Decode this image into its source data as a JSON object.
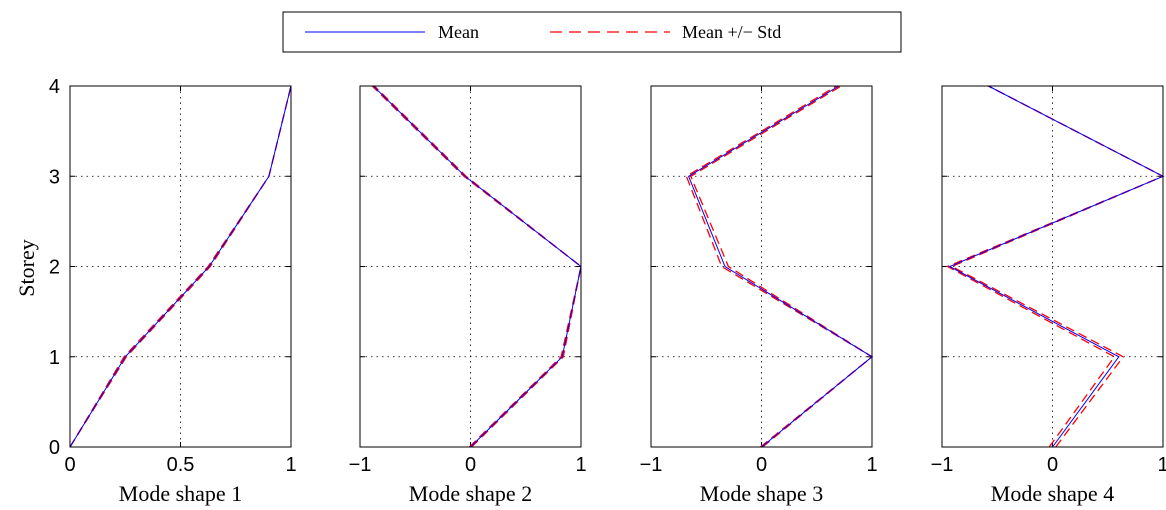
{
  "legend": {
    "entries": [
      {
        "label": "Mean",
        "color": "#0000ff",
        "style": "solid"
      },
      {
        "label": "Mean +/− Std",
        "color": "#ff0000",
        "style": "dashed"
      }
    ]
  },
  "ylabel": "Storey",
  "chart_data": [
    {
      "type": "line",
      "xlabel": "Mode shape 1",
      "xlim": [
        0,
        1
      ],
      "ylim": [
        0,
        4
      ],
      "xticks": [
        "0",
        "0.5",
        "1"
      ],
      "xtick_values": [
        0,
        0.5,
        1
      ],
      "yticks": [
        "0",
        "1",
        "2",
        "3",
        "4"
      ],
      "grid": true,
      "series": [
        {
          "name": "Mean",
          "y": [
            0,
            1,
            2,
            3,
            4
          ],
          "x": [
            0,
            0.25,
            0.63,
            0.9,
            1.0
          ]
        },
        {
          "name": "Mean +/− Std",
          "y": [
            0,
            1,
            2,
            3,
            4
          ],
          "x": [
            0,
            0.245,
            0.625,
            0.9,
            1.0
          ]
        },
        {
          "name": "Mean +/− Std",
          "y": [
            0,
            1,
            2,
            3,
            4
          ],
          "x": [
            0,
            0.255,
            0.635,
            0.9,
            1.0
          ]
        }
      ]
    },
    {
      "type": "line",
      "xlabel": "Mode shape 2",
      "xlim": [
        -1,
        1
      ],
      "ylim": [
        0,
        4
      ],
      "xticks": [
        "−1",
        "0",
        "1"
      ],
      "xtick_values": [
        -1,
        0,
        1
      ],
      "grid": true,
      "series": [
        {
          "name": "Mean",
          "y": [
            0,
            1,
            2,
            3,
            4
          ],
          "x": [
            0.0,
            0.83,
            1.0,
            -0.05,
            -0.88
          ]
        },
        {
          "name": "Mean +/− Std",
          "y": [
            0,
            1,
            2,
            3,
            4
          ],
          "x": [
            -0.01,
            0.82,
            1.0,
            -0.06,
            -0.89
          ]
        },
        {
          "name": "Mean +/− Std",
          "y": [
            0,
            1,
            2,
            3,
            4
          ],
          "x": [
            0.01,
            0.84,
            1.0,
            -0.04,
            -0.87
          ]
        }
      ]
    },
    {
      "type": "line",
      "xlabel": "Mode shape 3",
      "xlim": [
        -1,
        1
      ],
      "ylim": [
        0,
        4
      ],
      "xticks": [
        "−1",
        "0",
        "1"
      ],
      "xtick_values": [
        -1,
        0,
        1
      ],
      "grid": true,
      "series": [
        {
          "name": "Mean",
          "y": [
            0,
            1,
            2,
            3,
            4
          ],
          "x": [
            0.0,
            1.0,
            -0.33,
            -0.66,
            0.7
          ]
        },
        {
          "name": "Mean +/− Std",
          "y": [
            0,
            1,
            2,
            3,
            4
          ],
          "x": [
            -0.01,
            1.0,
            -0.36,
            -0.68,
            0.68
          ]
        },
        {
          "name": "Mean +/− Std",
          "y": [
            0,
            1,
            2,
            3,
            4
          ],
          "x": [
            0.01,
            1.0,
            -0.3,
            -0.64,
            0.72
          ]
        }
      ]
    },
    {
      "type": "line",
      "xlabel": "Mode shape 4",
      "xlim": [
        -1,
        1
      ],
      "ylim": [
        0,
        4
      ],
      "xticks": [
        "−1",
        "0",
        "1"
      ],
      "xtick_values": [
        -1,
        0,
        1
      ],
      "grid": true,
      "series": [
        {
          "name": "Mean",
          "y": [
            0,
            1,
            2,
            3,
            4
          ],
          "x": [
            0.0,
            0.6,
            -0.93,
            1.0,
            -0.58
          ]
        },
        {
          "name": "Mean +/− Std",
          "y": [
            0,
            1,
            2,
            3,
            4
          ],
          "x": [
            -0.03,
            0.56,
            -0.95,
            1.0,
            -0.58
          ]
        },
        {
          "name": "Mean +/− Std",
          "y": [
            0,
            1,
            2,
            3,
            4
          ],
          "x": [
            0.03,
            0.64,
            -0.91,
            1.0,
            -0.58
          ]
        }
      ]
    }
  ]
}
